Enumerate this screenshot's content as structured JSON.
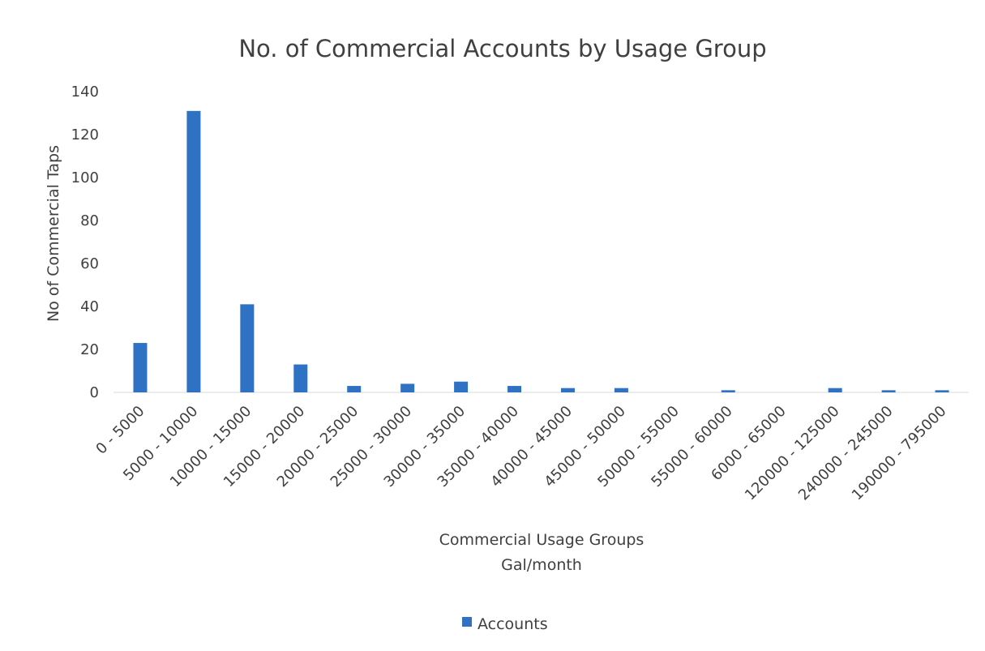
{
  "chart_data": {
    "type": "bar",
    "title": "No. of Commercial Accounts by Usage Group",
    "xlabel": "Commercial Usage Groups",
    "xlabel_line2": "Gal/month",
    "ylabel": "No of Commercial Taps",
    "ylim": [
      0,
      140
    ],
    "yticks": [
      0,
      20,
      40,
      60,
      80,
      100,
      120,
      140
    ],
    "grid": false,
    "legend_position": "bottom",
    "bar_color": "#2f72c4",
    "categories": [
      "0 - 5000",
      "5000 - 10000",
      "10000 - 15000",
      "15000 - 20000",
      "20000 - 25000",
      "25000 - 30000",
      "30000 - 35000",
      "35000 - 40000",
      "40000 - 45000",
      "45000 - 50000",
      "50000 - 55000",
      "55000 - 60000",
      "6000 - 65000",
      "120000 - 125000",
      "240000 - 245000",
      "190000 - 795000"
    ],
    "series": [
      {
        "name": "Accounts",
        "values": [
          23,
          131,
          41,
          13,
          3,
          4,
          5,
          3,
          2,
          2,
          0,
          1,
          0,
          2,
          1,
          1
        ]
      }
    ]
  }
}
